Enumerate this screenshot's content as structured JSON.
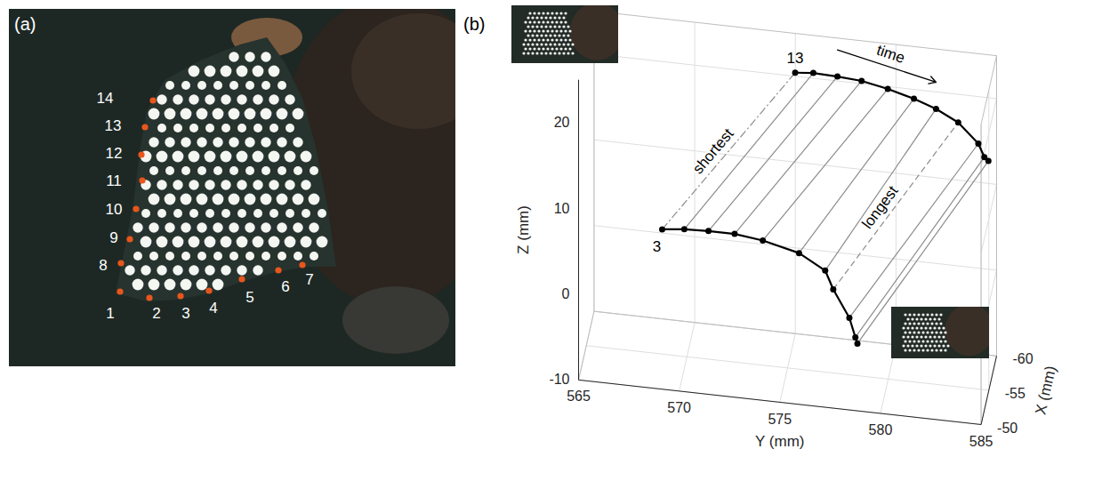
{
  "panel_a": {
    "label": "(a)",
    "markers": {
      "labels": [
        1,
        2,
        3,
        4,
        5,
        6,
        7,
        8,
        9,
        10,
        11,
        12,
        13,
        14
      ],
      "color": "#e8561c"
    }
  },
  "chart_data": {
    "type": "line3d",
    "panel_label": "(b)",
    "xlabel": "X (mm)",
    "ylabel": "Y (mm)",
    "zlabel": "Z (mm)",
    "xlim": [
      -60,
      -50
    ],
    "ylim": [
      565,
      585
    ],
    "zlim": [
      -10,
      25
    ],
    "xticks": [
      -60,
      -55,
      -50
    ],
    "yticks": [
      565,
      570,
      575,
      580,
      585
    ],
    "zticks": [
      -10,
      0,
      10,
      20
    ],
    "grid": true,
    "series": [
      {
        "name": "3",
        "color": "#000000",
        "marker": "circle",
        "x": [
          -52,
          -52,
          -52,
          -52,
          -52,
          -52,
          -52,
          -52,
          -52,
          -52,
          -52
        ],
        "y": [
          569.0,
          570.1,
          571.3,
          572.6,
          574.0,
          575.8,
          577.1,
          577.5,
          578.3,
          578.6,
          578.7
        ],
        "z": [
          7.0,
          7.3,
          7.4,
          7.4,
          7.0,
          6.0,
          4.3,
          2.2,
          -0.9,
          -3.1,
          -3.8
        ]
      },
      {
        "name": "13",
        "color": "#000000",
        "marker": "circle",
        "x": [
          -56,
          -56,
          -56,
          -56,
          -56,
          -56,
          -56,
          -56,
          -56,
          -56,
          -56
        ],
        "y": [
          575.3,
          576.2,
          577.4,
          578.6,
          579.9,
          581.2,
          582.3,
          583.4,
          584.4,
          584.7,
          584.9
        ],
        "z": [
          23.7,
          23.9,
          23.8,
          23.6,
          23.0,
          22.2,
          21.3,
          20.0,
          17.8,
          16.3,
          15.9
        ]
      }
    ],
    "connectors": {
      "color": "#8c8c8c",
      "line_style": "solid"
    },
    "annotations": [
      {
        "text": "shortest",
        "index": 0,
        "line_style": "dashdot"
      },
      {
        "text": "longest",
        "index": 7,
        "line_style": "dashed"
      },
      {
        "text": "time"
      }
    ]
  }
}
